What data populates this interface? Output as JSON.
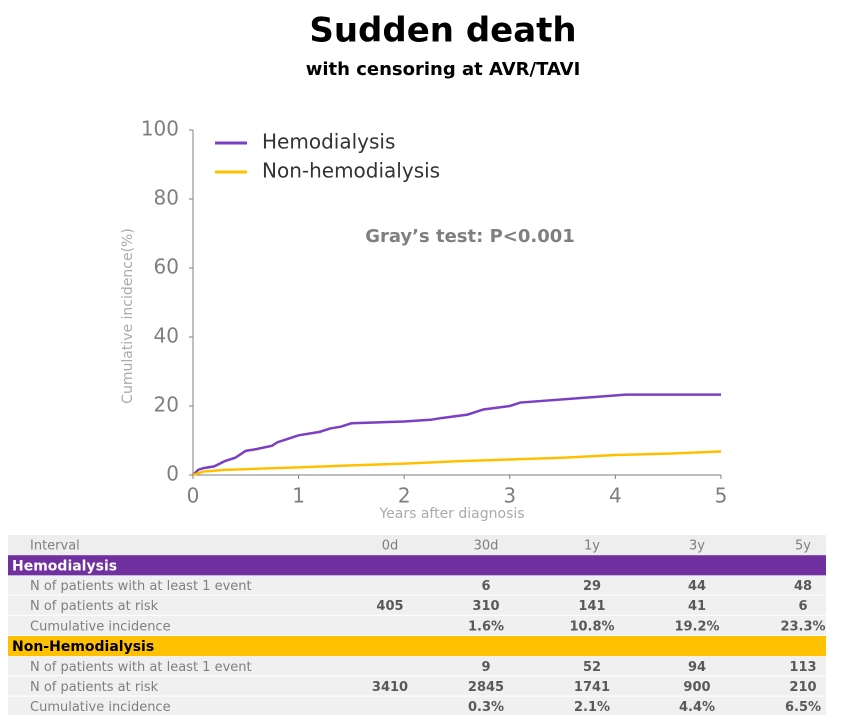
{
  "chart_data": {
    "type": "line",
    "title": "Sudden death",
    "subtitle": "with censoring at AVR/TAVI",
    "xlabel": "Years after diagnosis",
    "ylabel": "Cumulative incidence(%)",
    "annotation": "Gray’s test: P<0.001",
    "legend": "upper left",
    "xlim": [
      0,
      5
    ],
    "xticks": [
      0,
      1,
      2,
      3,
      4,
      5
    ],
    "ylim": [
      0,
      100
    ],
    "yticks": [
      0,
      20,
      40,
      60,
      80,
      100
    ],
    "grid": false,
    "series": [
      {
        "name": "Hemodialysis",
        "color": "#7b3fc4",
        "x": [
          0,
          0.05,
          0.1,
          0.2,
          0.3,
          0.4,
          0.5,
          0.6,
          0.75,
          0.8,
          0.9,
          1.0,
          1.2,
          1.3,
          1.4,
          1.5,
          2.0,
          2.25,
          2.35,
          2.6,
          2.75,
          3.0,
          3.1,
          4.1,
          4.2,
          5
        ],
        "values": [
          0,
          1.5,
          2,
          2.5,
          4,
          5,
          7,
          7.5,
          8.5,
          9.5,
          10.5,
          11.5,
          12.5,
          13.5,
          14,
          15,
          15.5,
          16,
          16.5,
          17.5,
          19,
          20,
          21,
          23.3,
          23.3,
          23.3
        ]
      },
      {
        "name": "Non-hemodialysis",
        "color": "#ffc000",
        "x": [
          0,
          0.1,
          0.3,
          0.6,
          1.0,
          1.5,
          2.0,
          2.5,
          3.0,
          3.5,
          4.0,
          4.5,
          5
        ],
        "values": [
          0,
          1,
          1.5,
          1.8,
          2.2,
          2.8,
          3.3,
          4.0,
          4.5,
          5.0,
          5.8,
          6.2,
          6.8
        ]
      }
    ]
  },
  "table": {
    "columns": [
      "Interval",
      "0d",
      "30d",
      "1y",
      "3y",
      "5y"
    ],
    "groups": [
      {
        "name": "Hemodialysis",
        "color": "#7030a0",
        "text_color": "#ffffff",
        "rows": [
          [
            "N of patients with at least 1 event",
            null,
            6,
            29,
            44,
            48
          ],
          [
            "N of patients at risk",
            405,
            310,
            141,
            41,
            6
          ],
          [
            "Cumulative incidence",
            null,
            "1.6%",
            "10.8%",
            "19.2%",
            "23.3%"
          ]
        ]
      },
      {
        "name": "Non-Hemodialysis",
        "color": "#ffc000",
        "text_color": "#000000",
        "rows": [
          [
            "N of patients with at least 1 event",
            null,
            9,
            52,
            94,
            113
          ],
          [
            "N of patients at risk",
            3410,
            2845,
            1741,
            900,
            210
          ],
          [
            "Cumulative incidence",
            null,
            "0.3%",
            "2.1%",
            "4.4%",
            "6.5%"
          ]
        ]
      }
    ]
  }
}
